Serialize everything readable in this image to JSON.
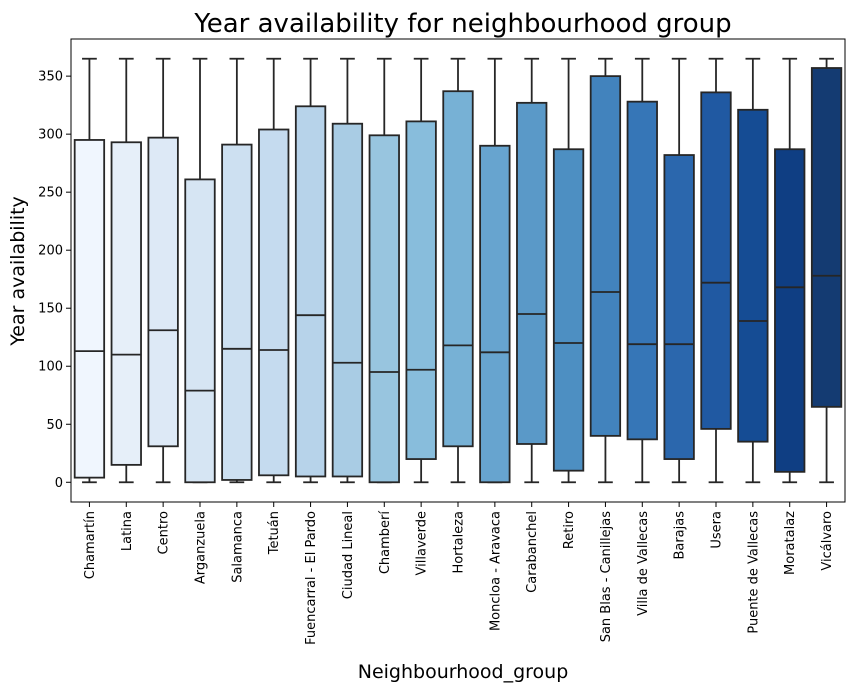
{
  "chart_data": {
    "type": "box",
    "title": "Year availability for neighbourhood group",
    "xlabel": "Neighbourhood_group",
    "ylabel": "Year availability",
    "ylim": [
      -17,
      382
    ],
    "yticks": [
      0,
      50,
      100,
      150,
      200,
      250,
      300,
      350
    ],
    "grid": false,
    "categories": [
      "Chamartín",
      "Latina",
      "Centro",
      "Arganzuela",
      "Salamanca",
      "Tetuán",
      "Fuencarral - El Pardo",
      "Ciudad Lineal",
      "Chamberí",
      "Villaverde",
      "Hortaleza",
      "Moncloa - Aravaca",
      "Carabanchel",
      "Retiro",
      "San Blas - Canillejas",
      "Villa de Vallecas",
      "Barajas",
      "Usera",
      "Puente de Vallecas",
      "Moratalaz",
      "Vicálvaro"
    ],
    "boxes": [
      {
        "min": 0,
        "q1": 4,
        "median": 113,
        "q3": 295,
        "max": 365
      },
      {
        "min": 0,
        "q1": 15,
        "median": 110,
        "q3": 293,
        "max": 365
      },
      {
        "min": 0,
        "q1": 31,
        "median": 131,
        "q3": 297,
        "max": 365
      },
      {
        "min": 0,
        "q1": 0,
        "median": 79,
        "q3": 261,
        "max": 365
      },
      {
        "min": 0,
        "q1": 2,
        "median": 115,
        "q3": 291,
        "max": 365
      },
      {
        "min": 0,
        "q1": 6,
        "median": 114,
        "q3": 304,
        "max": 365
      },
      {
        "min": 0,
        "q1": 5,
        "median": 144,
        "q3": 324,
        "max": 365
      },
      {
        "min": 0,
        "q1": 5,
        "median": 103,
        "q3": 309,
        "max": 365
      },
      {
        "min": 0,
        "q1": 0,
        "median": 95,
        "q3": 299,
        "max": 365
      },
      {
        "min": 0,
        "q1": 20,
        "median": 97,
        "q3": 311,
        "max": 365
      },
      {
        "min": 0,
        "q1": 31,
        "median": 118,
        "q3": 337,
        "max": 365
      },
      {
        "min": 0,
        "q1": 0,
        "median": 112,
        "q3": 290,
        "max": 365
      },
      {
        "min": 0,
        "q1": 33,
        "median": 145,
        "q3": 327,
        "max": 365
      },
      {
        "min": 0,
        "q1": 10,
        "median": 120,
        "q3": 287,
        "max": 365
      },
      {
        "min": 0,
        "q1": 40,
        "median": 164,
        "q3": 350,
        "max": 365
      },
      {
        "min": 0,
        "q1": 37,
        "median": 119,
        "q3": 328,
        "max": 365
      },
      {
        "min": 0,
        "q1": 20,
        "median": 119,
        "q3": 282,
        "max": 365
      },
      {
        "min": 0,
        "q1": 46,
        "median": 172,
        "q3": 336,
        "max": 365
      },
      {
        "min": 0,
        "q1": 35,
        "median": 139,
        "q3": 321,
        "max": 365
      },
      {
        "min": 0,
        "q1": 9,
        "median": 168,
        "q3": 287,
        "max": 365
      },
      {
        "min": 0,
        "q1": 65,
        "median": 178,
        "q3": 357,
        "max": 365
      }
    ],
    "palette": "Blues",
    "colors": [
      "#f0f6fe",
      "#e6eff9",
      "#dde9f6",
      "#d6e5f3",
      "#cde0f1",
      "#c5dbef",
      "#b7d3ea",
      "#a9cce4",
      "#98c5df",
      "#88bddc",
      "#77b1d5",
      "#67a4cf",
      "#5a99c8",
      "#4d8fc2",
      "#4283bd",
      "#3676b7",
      "#2b67ad",
      "#2059a2",
      "#154c94",
      "#0f3e83",
      "#143b72"
    ],
    "line_color": "#262626"
  }
}
